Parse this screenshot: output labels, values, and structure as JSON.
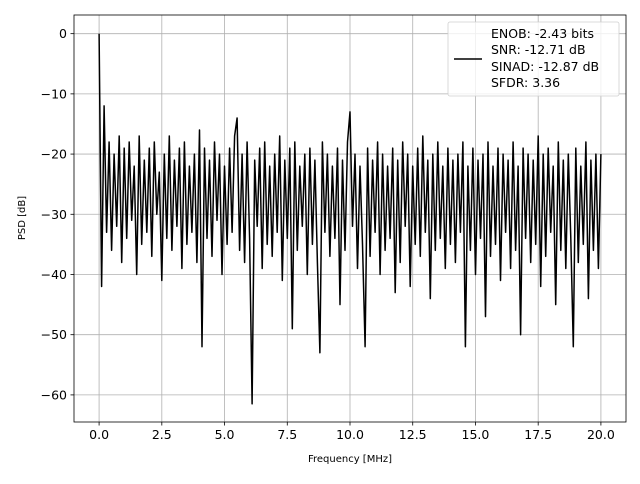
{
  "chart_data": {
    "type": "line",
    "title": "",
    "xlabel": "Frequency [MHz]",
    "ylabel": "PSD [dB]",
    "xlim": [
      -1.0,
      21.0
    ],
    "ylim": [
      -64.5,
      3.1
    ],
    "grid": true,
    "legend_placement": "top-right",
    "x_range": [
      0,
      20
    ],
    "xticks": [
      "0.0",
      "2.5",
      "5.0",
      "7.5",
      "10.0",
      "12.5",
      "15.0",
      "17.5",
      "20.0"
    ],
    "xtick_values": [
      0,
      2.5,
      5,
      7.5,
      10,
      12.5,
      15,
      17.5,
      20
    ],
    "yticks": [
      "0",
      "−10",
      "−20",
      "−30",
      "−40",
      "−50",
      "−60"
    ],
    "ytick_values": [
      0,
      -10,
      -20,
      -30,
      -40,
      -50,
      -60
    ],
    "series_color": "#000000",
    "grid_color": "#b0b0b0",
    "legend": [
      "ENOB: -2.43 bits",
      "SNR: -12.71 dB",
      "SINAD: -12.87 dB",
      "SFDR: 3.36"
    ],
    "y": [
      0,
      -42,
      -12,
      -33,
      -18,
      -36,
      -20,
      -32,
      -17,
      -38,
      -19,
      -34,
      -18,
      -31,
      -22,
      -40,
      -17,
      -35,
      -21,
      -33,
      -19,
      -37,
      -18,
      -30,
      -23,
      -41,
      -20,
      -34,
      -17,
      -36,
      -21,
      -32,
      -19,
      -39,
      -18,
      -35,
      -22,
      -33,
      -20,
      -38,
      -16,
      -52,
      -19,
      -34,
      -21,
      -37,
      -18,
      -31,
      -20,
      -40,
      -22,
      -35,
      -19,
      -33,
      -17,
      -14,
      -36,
      -20,
      -38,
      -18,
      -34,
      -61.5,
      -21,
      -32,
      -19,
      -39,
      -18,
      -35,
      -22,
      -37,
      -20,
      -33,
      -17,
      -41,
      -21,
      -34,
      -19,
      -49,
      -18,
      -36,
      -22,
      -32,
      -20,
      -40,
      -19,
      -35,
      -21,
      -38,
      -53,
      -18,
      -33,
      -20,
      -37,
      -22,
      -34,
      -19,
      -45,
      -21,
      -36,
      -18,
      -13,
      -32,
      -20,
      -39,
      -22,
      -35,
      -52,
      -19,
      -37,
      -21,
      -33,
      -18,
      -40,
      -20,
      -36,
      -22,
      -34,
      -19,
      -43,
      -21,
      -38,
      -18,
      -32,
      -20,
      -42,
      -22,
      -35,
      -19,
      -37,
      -17,
      -33,
      -21,
      -44,
      -20,
      -36,
      -18,
      -34,
      -22,
      -39,
      -19,
      -35,
      -21,
      -38,
      -20,
      -33,
      -18,
      -52,
      -22,
      -36,
      -19,
      -40,
      -21,
      -34,
      -20,
      -47,
      -18,
      -37,
      -22,
      -35,
      -19,
      -41,
      -20,
      -33,
      -21,
      -39,
      -18,
      -36,
      -22,
      -50,
      -19,
      -34,
      -20,
      -38,
      -21,
      -35,
      -17,
      -42,
      -20,
      -37,
      -19,
      -33,
      -22,
      -45,
      -18,
      -36,
      -21,
      -39,
      -20,
      -34,
      -52,
      -19,
      -38,
      -22,
      -35,
      -18,
      -44,
      -21,
      -36,
      -20,
      -39,
      -20
    ]
  }
}
